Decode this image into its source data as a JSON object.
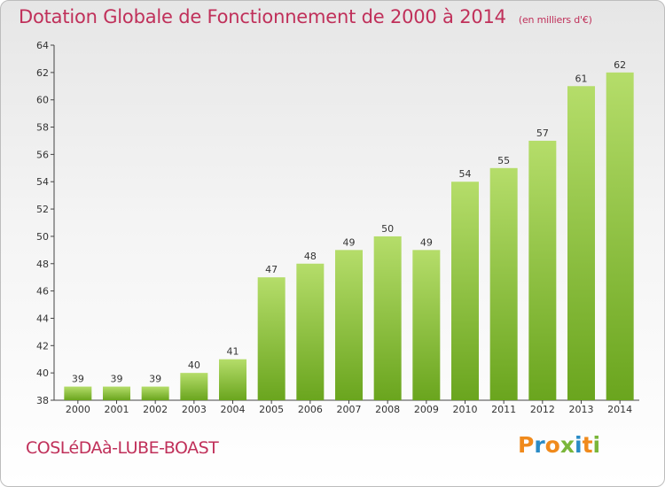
{
  "title": "Dotation Globale de Fonctionnement de 2000 à 2014",
  "subtitle": "(en milliers d'€)",
  "town": "COSLéDAà-LUBE-BOAST",
  "logo": "Proxiti",
  "colors": {
    "title": "#c0305a",
    "bar_light": "#b5dd6a",
    "bar_dark": "#6aa51e",
    "logo_letters": [
      "#f08a1c",
      "#2a8bc6",
      "#f08a1c",
      "#7ab63a",
      "#2a8bc6",
      "#f08a1c",
      "#7ab63a"
    ]
  },
  "chart_data": {
    "type": "bar",
    "title": "Dotation Globale de Fonctionnement de 2000 à 2014",
    "subtitle": "(en milliers d'€)",
    "categories": [
      "2000",
      "2001",
      "2002",
      "2003",
      "2004",
      "2005",
      "2006",
      "2007",
      "2008",
      "2009",
      "2010",
      "2011",
      "2012",
      "2013",
      "2014"
    ],
    "values": [
      39,
      39,
      39,
      40,
      41,
      47,
      48,
      49,
      50,
      49,
      54,
      55,
      57,
      61,
      62
    ],
    "ylim": [
      38,
      64
    ],
    "yticks": [
      38,
      40,
      42,
      44,
      46,
      48,
      50,
      52,
      54,
      56,
      58,
      60,
      62,
      64
    ],
    "grid": false,
    "data_labels": true
  }
}
